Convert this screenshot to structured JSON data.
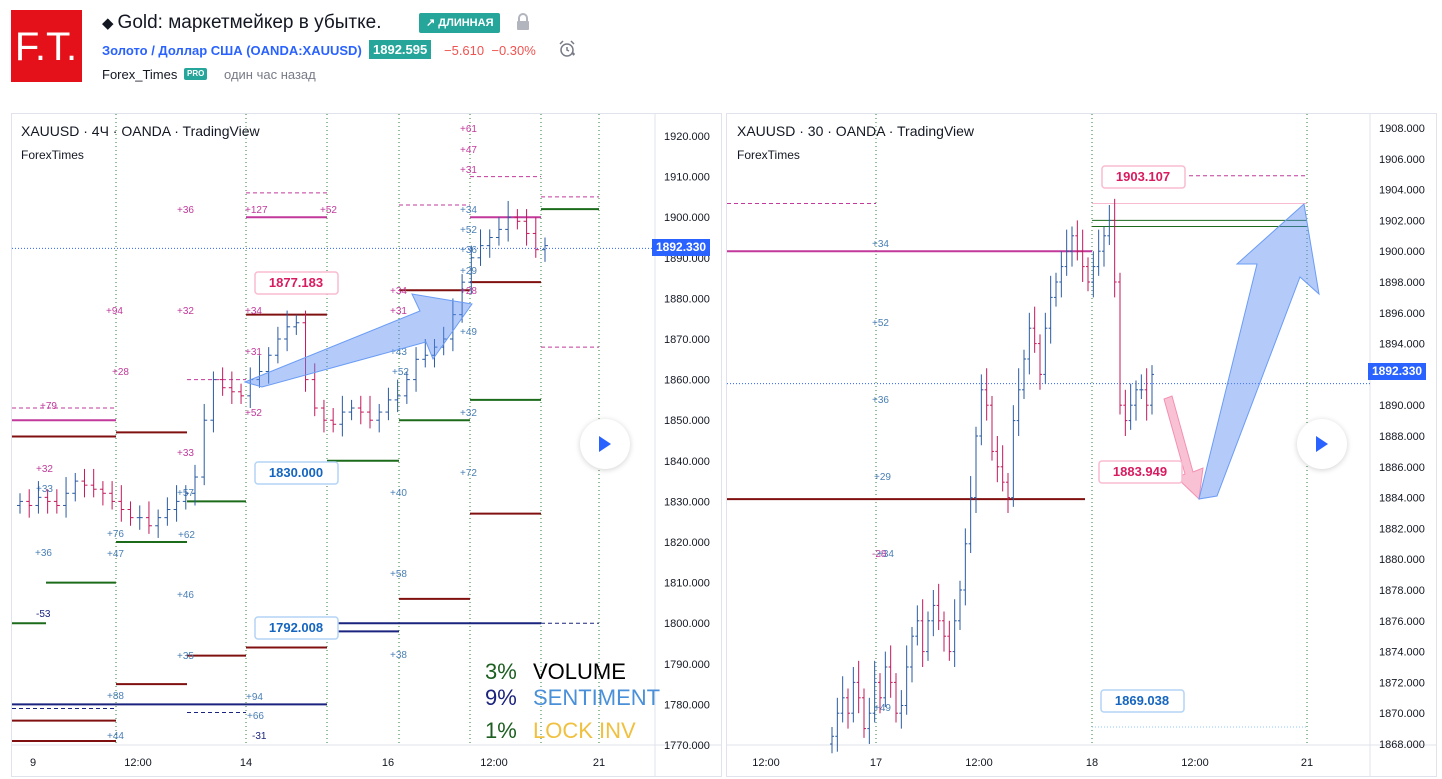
{
  "header": {
    "logo_text": "F.T.",
    "title": "Gold: маркетмейкер в убытке.",
    "badge": "↗ ДЛИННАЯ",
    "symbol": "Золото / Доллар США (OANDA:XAUUSD)",
    "price": "1892.595",
    "change": "−5.610",
    "change_pct": "−0.30%",
    "author": "Forex_Times",
    "author_badge": "PRO",
    "published": "один час назад"
  },
  "colors": {
    "brand_red": "#e4101a",
    "accent_green": "#26a69a",
    "accent_blue": "#2962ff",
    "negative": "#ef5350",
    "level_magenta": "#c2399b",
    "level_darkred": "#801010",
    "level_green": "#1b6b1b",
    "level_navy": "#1a237e"
  },
  "chart_left": {
    "title": "XAUUSD · 4Ч · OANDA · TradingView",
    "subtitle": "ForexTimes",
    "current_price": "1892.330",
    "y_ticks": [
      "1920.000",
      "1910.000",
      "1900.000",
      "1890.000",
      "1880.000",
      "1870.000",
      "1860.000",
      "1850.000",
      "1840.000",
      "1830.000",
      "1820.000",
      "1810.000",
      "1800.000",
      "1790.000",
      "1780.000",
      "1770.000"
    ],
    "x_ticks": [
      "9",
      "12:00",
      "14",
      "16",
      "12:00",
      "21"
    ],
    "labels": [
      "1877.183",
      "1830.000",
      "1792.008"
    ],
    "stats": [
      {
        "pct": "3%",
        "name": "VOLUME"
      },
      {
        "pct": "9%",
        "name": "SENTIMENT"
      },
      {
        "pct": "1%",
        "name": "LOCK INV"
      }
    ]
  },
  "chart_right": {
    "title": "XAUUSD · 30 · OANDA · TradingView",
    "subtitle": "ForexTimes",
    "current_price": "1892.330",
    "y_ticks": [
      "1908.000",
      "1906.000",
      "1904.000",
      "1902.000",
      "1900.000",
      "1898.000",
      "1896.000",
      "1894.000",
      "1892.000",
      "1890.000",
      "1888.000",
      "1886.000",
      "1884.000",
      "1882.000",
      "1880.000",
      "1878.000",
      "1876.000",
      "1874.000",
      "1872.000",
      "1870.000",
      "1868.000"
    ],
    "x_ticks": [
      "12:00",
      "17",
      "12:00",
      "18",
      "12:00",
      "21"
    ],
    "labels": [
      "1903.107",
      "1883.949",
      "1869.038"
    ]
  }
}
